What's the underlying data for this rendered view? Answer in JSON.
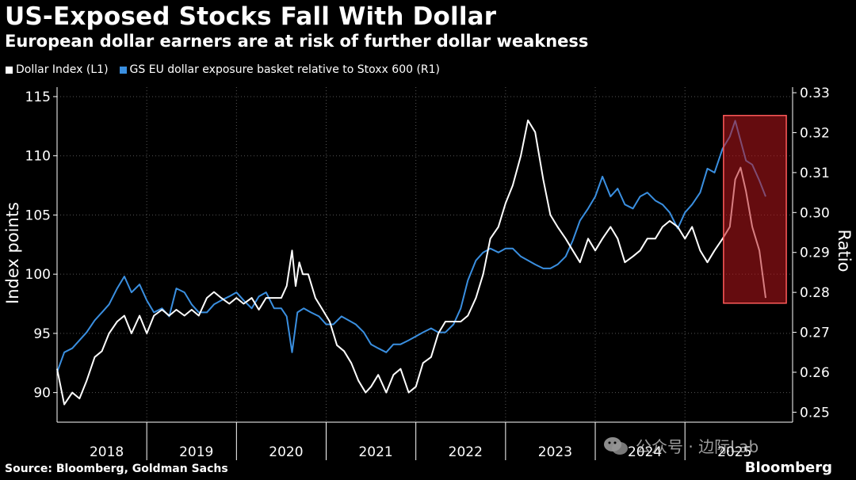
{
  "title": "US-Exposed Stocks Fall With Dollar",
  "subtitle": "European dollar earners are at risk of further dollar weakness",
  "source": "Source: Bloomberg, Goldman Sachs",
  "brand": "Bloomberg",
  "watermark": "公众号 · 边际Lab",
  "colors": {
    "background": "#000000",
    "dollar_index": "#ffffff",
    "gs_basket": "#3a8fe0",
    "highlight_fill": "#b8151c",
    "highlight_border": "#ff5a5a",
    "grid": "#555555"
  },
  "chart_data": {
    "type": "line",
    "title": "US-Exposed Stocks Fall With Dollar",
    "subtitle": "European dollar earners are at risk of further dollar weakness",
    "ylabel": "Index points",
    "y2label": "Ratio",
    "ylim": [
      87.5,
      115.8
    ],
    "y2lim": [
      0.2475,
      0.3314
    ],
    "yticks": [
      90,
      95,
      100,
      105,
      110,
      115
    ],
    "y2ticks": [
      0.25,
      0.26,
      0.27,
      0.28,
      0.29,
      0.3,
      0.31,
      0.32,
      0.33
    ],
    "xlim": [
      2017.5,
      2025.7
    ],
    "xticks": [
      {
        "label": "2018",
        "pos": 2018.0
      },
      {
        "label": "2019",
        "pos": 2019.0
      },
      {
        "label": "2020",
        "pos": 2020.0
      },
      {
        "label": "2021",
        "pos": 2021.0
      },
      {
        "label": "2022",
        "pos": 2022.0
      },
      {
        "label": "2023",
        "pos": 2023.0
      },
      {
        "label": "2024",
        "pos": 2024.0
      },
      {
        "label": "2025",
        "pos": 2025.0
      }
    ],
    "xgrid": [
      2018.5,
      2019.5,
      2020.5,
      2021.5,
      2022.5,
      2023.5,
      2024.5
    ],
    "grid": true,
    "legend_position": "top-left",
    "highlight": {
      "x": [
        2024.93,
        2025.63
      ],
      "y2": [
        0.2773,
        0.3243
      ]
    },
    "series": [
      {
        "name": "Dollar Index (L1)",
        "axis": "left",
        "x": [
          2017.5,
          2017.58,
          2017.67,
          2017.75,
          2017.83,
          2017.92,
          2018.0,
          2018.08,
          2018.17,
          2018.25,
          2018.33,
          2018.42,
          2018.5,
          2018.58,
          2018.67,
          2018.75,
          2018.83,
          2018.92,
          2019.0,
          2019.08,
          2019.17,
          2019.25,
          2019.33,
          2019.42,
          2019.5,
          2019.58,
          2019.67,
          2019.75,
          2019.83,
          2019.92,
          2020.0,
          2020.06,
          2020.12,
          2020.16,
          2020.2,
          2020.24,
          2020.3,
          2020.38,
          2020.46,
          2020.54,
          2020.62,
          2020.7,
          2020.78,
          2020.86,
          2020.94,
          2021.0,
          2021.08,
          2021.17,
          2021.25,
          2021.33,
          2021.42,
          2021.5,
          2021.58,
          2021.67,
          2021.75,
          2021.83,
          2021.92,
          2022.0,
          2022.08,
          2022.17,
          2022.25,
          2022.33,
          2022.42,
          2022.5,
          2022.58,
          2022.67,
          2022.75,
          2022.83,
          2022.92,
          2023.0,
          2023.08,
          2023.17,
          2023.25,
          2023.33,
          2023.42,
          2023.5,
          2023.58,
          2023.67,
          2023.75,
          2023.83,
          2023.92,
          2024.0,
          2024.08,
          2024.17,
          2024.25,
          2024.33,
          2024.42,
          2024.5,
          2024.58,
          2024.67,
          2024.75,
          2024.83,
          2024.92,
          2025.0,
          2025.06,
          2025.12,
          2025.18,
          2025.25,
          2025.33,
          2025.4
        ],
        "values": [
          92,
          89,
          90,
          89.5,
          91,
          93,
          93.5,
          95,
          96,
          96.5,
          95,
          96.5,
          95,
          96.5,
          97,
          96.5,
          97,
          96.5,
          97,
          96.5,
          98,
          98.5,
          98,
          97.5,
          98,
          97.5,
          98,
          97,
          98,
          98,
          98,
          99,
          102,
          99,
          101,
          100,
          100,
          98,
          97,
          96,
          94,
          93.5,
          92.5,
          91,
          90,
          90.5,
          91.5,
          90,
          91.5,
          92,
          90,
          90.5,
          92.5,
          93,
          95,
          96,
          96,
          96,
          96.5,
          98,
          100,
          103,
          104,
          106,
          107.5,
          110,
          113,
          112,
          108,
          105,
          104,
          103,
          102,
          101,
          103,
          102,
          103,
          104,
          103,
          101,
          101.5,
          102,
          103,
          103,
          104,
          104.5,
          104,
          103,
          104,
          102,
          101,
          102,
          103,
          104,
          108,
          109,
          107,
          104,
          102,
          98
        ]
      },
      {
        "name": "GS EU dollar exposure basket relative to Stoxx 600 (R1)",
        "axis": "right",
        "x": [
          2017.5,
          2017.58,
          2017.67,
          2017.75,
          2017.83,
          2017.92,
          2018.0,
          2018.08,
          2018.17,
          2018.25,
          2018.33,
          2018.42,
          2018.5,
          2018.58,
          2018.67,
          2018.75,
          2018.83,
          2018.92,
          2019.0,
          2019.08,
          2019.17,
          2019.25,
          2019.33,
          2019.42,
          2019.5,
          2019.58,
          2019.67,
          2019.75,
          2019.83,
          2019.92,
          2020.0,
          2020.06,
          2020.12,
          2020.18,
          2020.25,
          2020.33,
          2020.42,
          2020.5,
          2020.58,
          2020.67,
          2020.75,
          2020.83,
          2020.92,
          2021.0,
          2021.08,
          2021.17,
          2021.25,
          2021.33,
          2021.42,
          2021.5,
          2021.58,
          2021.67,
          2021.75,
          2021.83,
          2021.92,
          2022.0,
          2022.08,
          2022.17,
          2022.25,
          2022.33,
          2022.42,
          2022.5,
          2022.58,
          2022.67,
          2022.75,
          2022.83,
          2022.92,
          2023.0,
          2023.08,
          2023.17,
          2023.25,
          2023.33,
          2023.42,
          2023.5,
          2023.58,
          2023.67,
          2023.75,
          2023.83,
          2023.92,
          2024.0,
          2024.08,
          2024.17,
          2024.25,
          2024.33,
          2024.42,
          2024.5,
          2024.58,
          2024.67,
          2024.75,
          2024.83,
          2024.92,
          2025.0,
          2025.06,
          2025.12,
          2025.18,
          2025.25,
          2025.33,
          2025.4
        ],
        "values": [
          0.26,
          0.265,
          0.266,
          0.268,
          0.27,
          0.273,
          0.275,
          0.277,
          0.281,
          0.284,
          0.28,
          0.282,
          0.278,
          0.275,
          0.276,
          0.274,
          0.281,
          0.28,
          0.277,
          0.275,
          0.275,
          0.277,
          0.278,
          0.279,
          0.28,
          0.278,
          0.276,
          0.279,
          0.28,
          0.276,
          0.276,
          0.274,
          0.265,
          0.275,
          0.276,
          0.275,
          0.274,
          0.272,
          0.272,
          0.274,
          0.273,
          0.272,
          0.27,
          0.267,
          0.266,
          0.265,
          0.267,
          0.267,
          0.268,
          0.269,
          0.27,
          0.271,
          0.27,
          0.27,
          0.272,
          0.276,
          0.283,
          0.288,
          0.29,
          0.291,
          0.29,
          0.291,
          0.291,
          0.289,
          0.288,
          0.287,
          0.286,
          0.286,
          0.287,
          0.289,
          0.293,
          0.298,
          0.301,
          0.304,
          0.309,
          0.304,
          0.306,
          0.302,
          0.301,
          0.304,
          0.305,
          0.303,
          0.302,
          0.3,
          0.296,
          0.3,
          0.302,
          0.305,
          0.311,
          0.31,
          0.316,
          0.319,
          0.323,
          0.318,
          0.313,
          0.312,
          0.308,
          0.304
        ]
      }
    ]
  }
}
